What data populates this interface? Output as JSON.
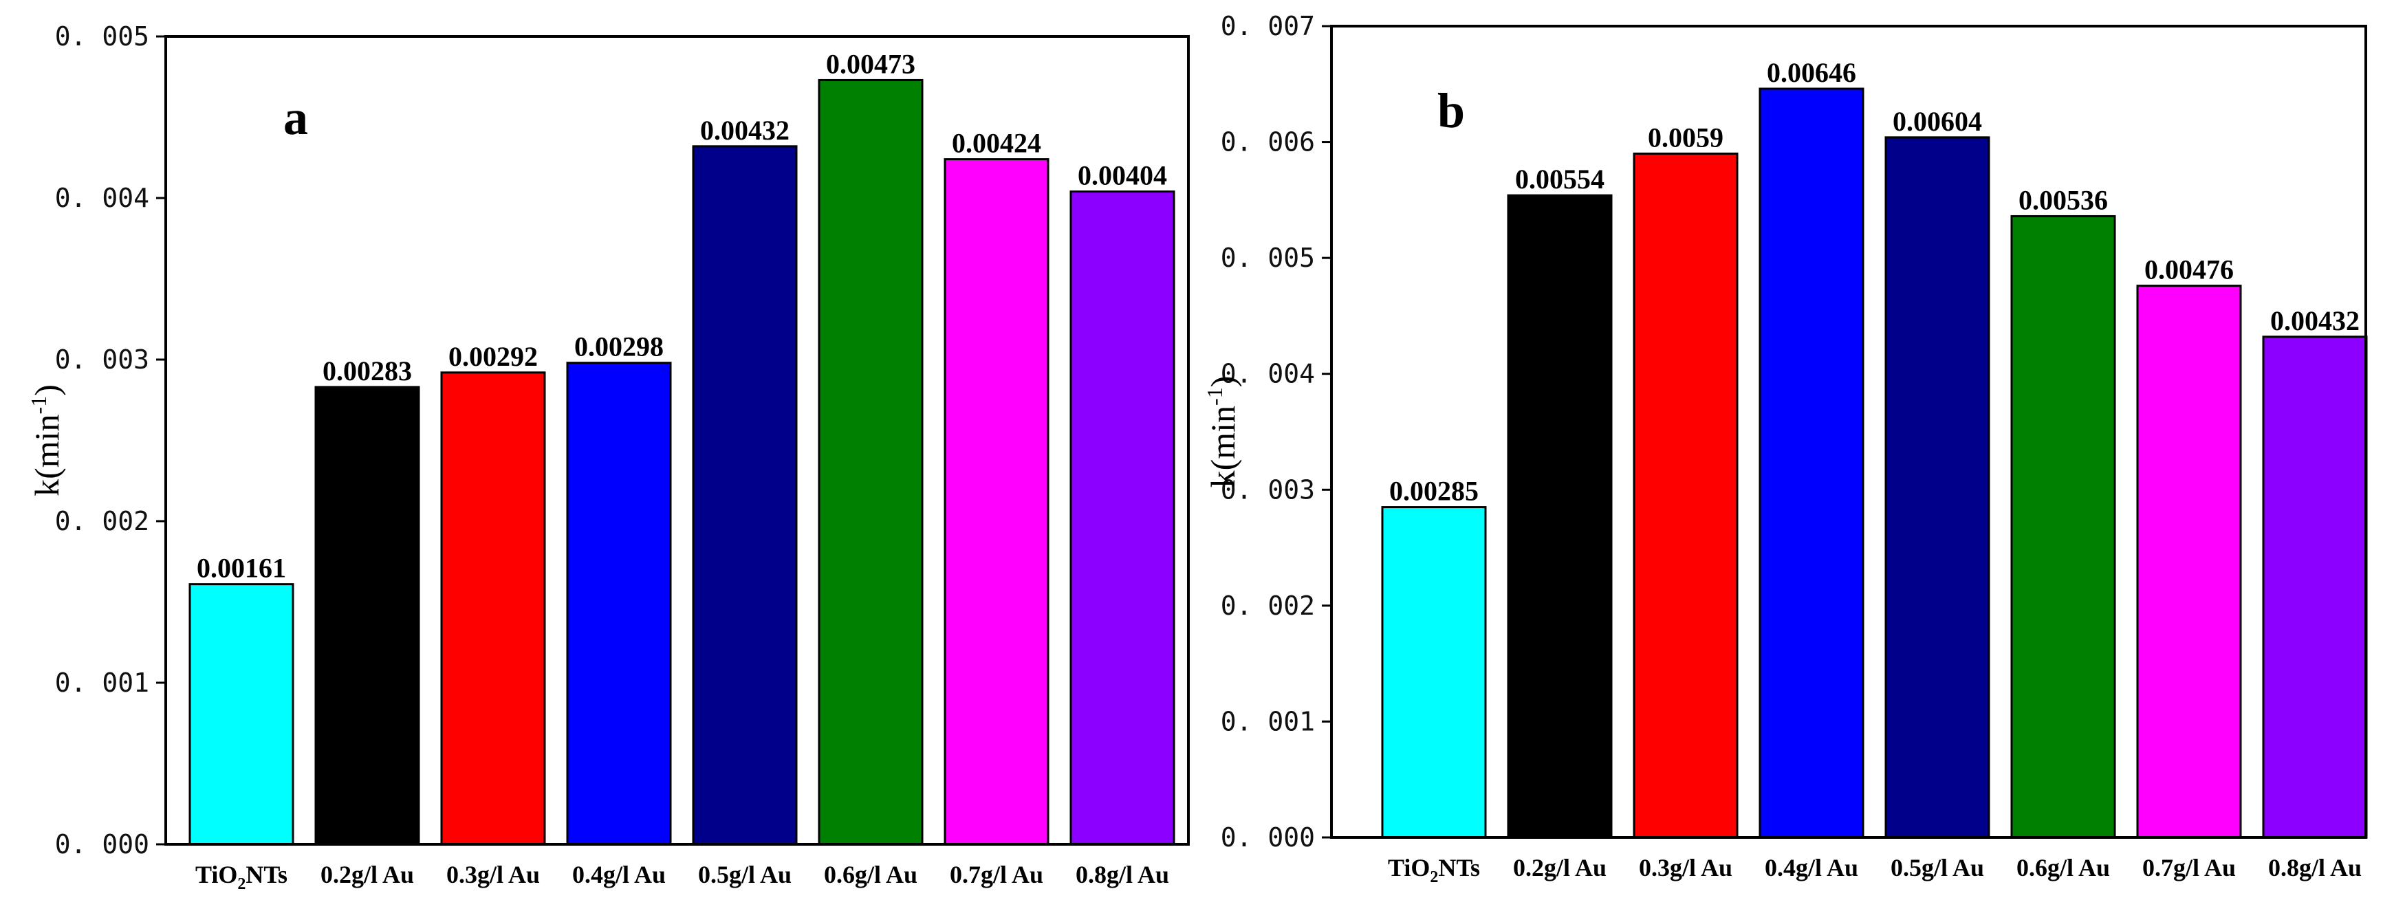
{
  "chart_data": [
    {
      "type": "bar",
      "panel": "a",
      "title": "",
      "xlabel": "",
      "ylabel": "k(min",
      "ylabel_sup": "-1",
      "ylabel_close": ")",
      "ylim": [
        0,
        0.005
      ],
      "yticks": [
        0,
        0.001,
        0.002,
        0.003,
        0.004,
        0.005
      ],
      "ytick_labels": [
        "0. 000",
        "0. 001",
        "0. 002",
        "0. 003",
        "0. 004",
        "0. 005"
      ],
      "categories": [
        {
          "pre": "TiO",
          "sub": "2",
          "post": "NTs"
        },
        {
          "pre": "0.2g/l Au",
          "sub": "",
          "post": ""
        },
        {
          "pre": "0.3g/l Au",
          "sub": "",
          "post": ""
        },
        {
          "pre": "0.4g/l Au",
          "sub": "",
          "post": ""
        },
        {
          "pre": "0.5g/l Au",
          "sub": "",
          "post": ""
        },
        {
          "pre": "0.6g/l Au",
          "sub": "",
          "post": ""
        },
        {
          "pre": "0.7g/l Au",
          "sub": "",
          "post": ""
        },
        {
          "pre": "0.8g/l Au",
          "sub": "",
          "post": ""
        }
      ],
      "values": [
        0.00161,
        0.00283,
        0.00292,
        0.00298,
        0.00432,
        0.00473,
        0.00424,
        0.00404
      ],
      "value_labels": [
        "0.00161",
        "0.00283",
        "0.00292",
        "0.00298",
        "0.00432",
        "0.00473",
        "0.00424",
        "0.00404"
      ],
      "colors": [
        "#00ffff",
        "#000000",
        "#ff0000",
        "#0000ff",
        "#00008b",
        "#008000",
        "#ff00ff",
        "#8b00ff"
      ]
    },
    {
      "type": "bar",
      "panel": "b",
      "title": "",
      "xlabel": "",
      "ylabel": "k(min",
      "ylabel_sup": "-1",
      "ylabel_close": ")",
      "ylim": [
        0,
        0.007
      ],
      "yticks": [
        0,
        0.001,
        0.002,
        0.003,
        0.004,
        0.005,
        0.006,
        0.007
      ],
      "ytick_labels": [
        "0. 000",
        "0. 001",
        "0. 002",
        "0. 003",
        "0. 004",
        "0. 005",
        "0. 006",
        "0. 007"
      ],
      "categories": [
        {
          "pre": "TiO",
          "sub": "2",
          "post": "NTs"
        },
        {
          "pre": "0.2g/l Au",
          "sub": "",
          "post": ""
        },
        {
          "pre": "0.3g/l Au",
          "sub": "",
          "post": ""
        },
        {
          "pre": "0.4g/l Au",
          "sub": "",
          "post": ""
        },
        {
          "pre": "0.5g/l Au",
          "sub": "",
          "post": ""
        },
        {
          "pre": "0.6g/l Au",
          "sub": "",
          "post": ""
        },
        {
          "pre": "0.7g/l Au",
          "sub": "",
          "post": ""
        },
        {
          "pre": "0.8g/l Au",
          "sub": "",
          "post": ""
        }
      ],
      "values": [
        0.00285,
        0.00554,
        0.0059,
        0.00646,
        0.00604,
        0.00536,
        0.00476,
        0.00432
      ],
      "value_labels": [
        "0.00285",
        "0.00554",
        "0.0059",
        "0.00646",
        "0.00604",
        "0.00536",
        "0.00476",
        "0.00432"
      ],
      "colors": [
        "#00ffff",
        "#000000",
        "#ff0000",
        "#0000ff",
        "#00008b",
        "#008000",
        "#ff00ff",
        "#8b00ff"
      ]
    }
  ]
}
